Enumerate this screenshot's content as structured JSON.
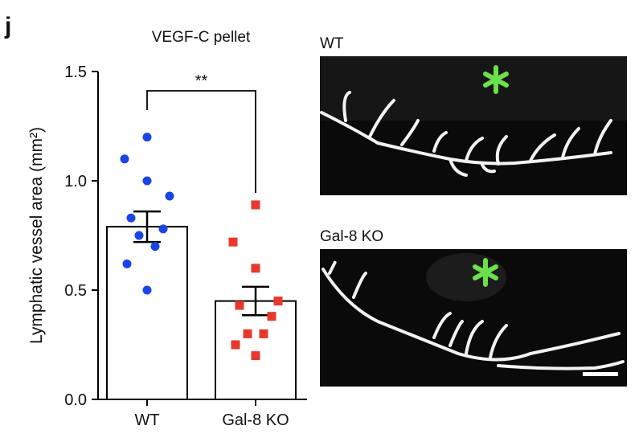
{
  "chart_data": {
    "type": "bar",
    "panel_label": "j",
    "title": "VEGF-C pellet",
    "ylabel": "Lymphatic vessel area (mm²)",
    "categories": [
      "WT",
      "Gal-8 KO"
    ],
    "values": [
      0.79,
      0.45
    ],
    "errors": [
      0.07,
      0.065
    ],
    "points": [
      [
        1.2,
        1.1,
        1.0,
        0.93,
        0.83,
        0.78,
        0.75,
        0.7,
        0.62,
        0.5
      ],
      [
        0.89,
        0.72,
        0.6,
        0.45,
        0.43,
        0.38,
        0.3,
        0.3,
        0.25,
        0.2
      ]
    ],
    "point_colors": [
      "#1a45e6",
      "#e8382b"
    ],
    "point_shapes": [
      "circle",
      "square"
    ],
    "significance": "**",
    "ylim": [
      0,
      1.5
    ],
    "yticks": [
      {
        "value": 0,
        "label": "0.0"
      },
      {
        "value": 0.5,
        "label": "0.5"
      },
      {
        "value": 1,
        "label": "1.0"
      },
      {
        "value": 1.5,
        "label": "1.5"
      }
    ]
  },
  "image_labels": [
    "WT",
    "Gal-8 KO"
  ]
}
